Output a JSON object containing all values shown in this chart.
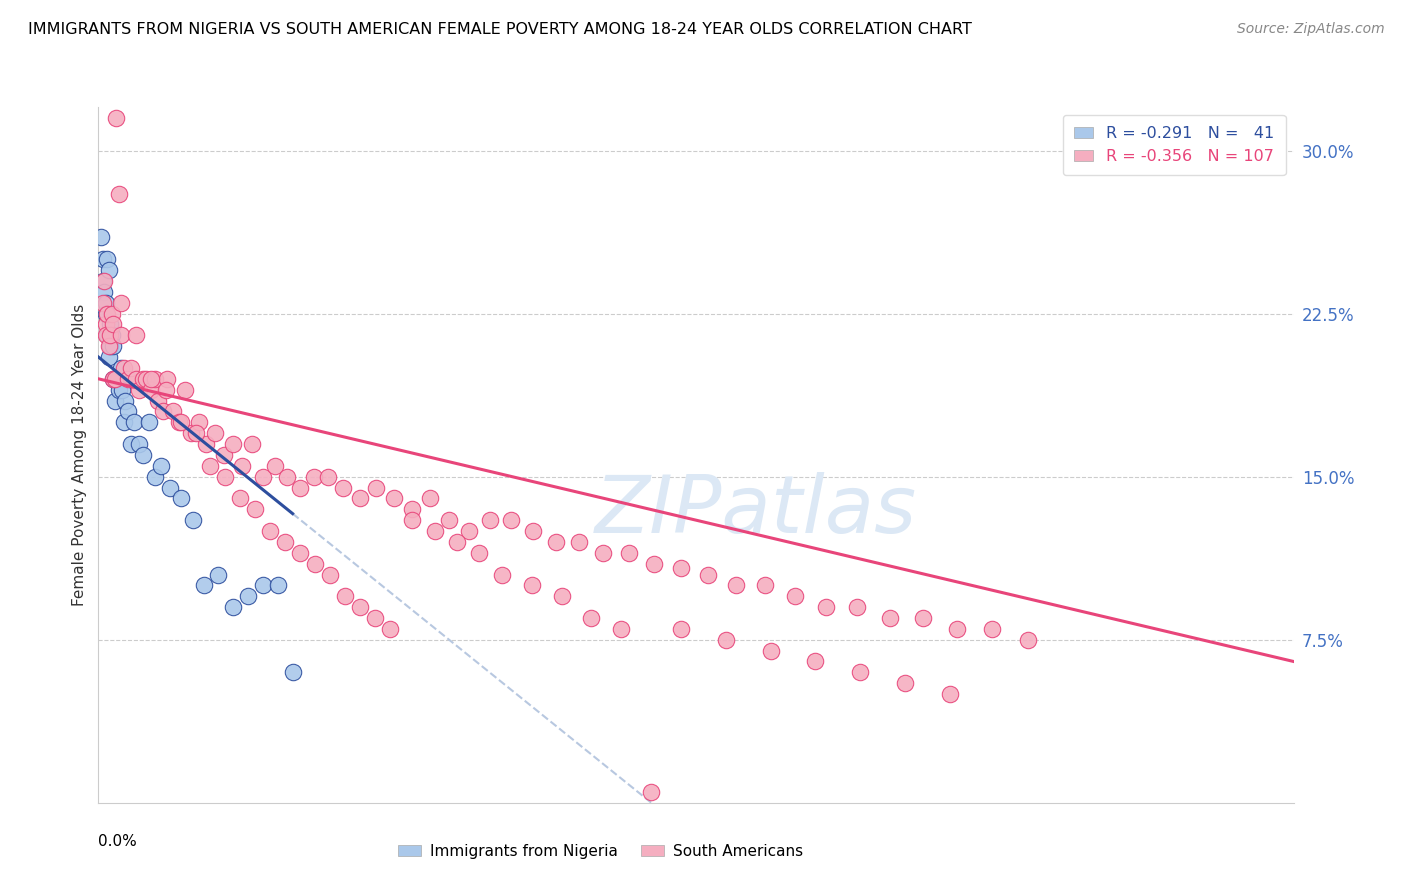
{
  "title": "IMMIGRANTS FROM NIGERIA VS SOUTH AMERICAN FEMALE POVERTY AMONG 18-24 YEAR OLDS CORRELATION CHART",
  "source": "Source: ZipAtlas.com",
  "ylabel": "Female Poverty Among 18-24 Year Olds",
  "right_yticks": [
    "30.0%",
    "22.5%",
    "15.0%",
    "7.5%"
  ],
  "right_ytick_vals": [
    0.3,
    0.225,
    0.15,
    0.075
  ],
  "legend_blue_label": "R = -0.291   N =   41",
  "legend_pink_label": "R = -0.356   N = 107",
  "scatter_blue_color": "#aac8ea",
  "scatter_pink_color": "#f5aec0",
  "line_blue_color": "#2d4e9e",
  "line_pink_color": "#e8457a",
  "line_dashed_color": "#b8c8e0",
  "watermark_text": "ZIPatlas",
  "watermark_color": "#dce8f5",
  "background_color": "#ffffff",
  "xmin": 0.0,
  "xmax": 0.8,
  "ymin": 0.0,
  "ymax": 0.32,
  "blue_line_x0": 0.0,
  "blue_line_y0": 0.205,
  "blue_line_x1": 0.13,
  "blue_line_y1": 0.133,
  "pink_line_x0": 0.0,
  "pink_line_y0": 0.195,
  "pink_line_x1": 0.8,
  "pink_line_y1": 0.065,
  "blue_x": [
    0.002,
    0.003,
    0.003,
    0.004,
    0.005,
    0.005,
    0.006,
    0.006,
    0.007,
    0.007,
    0.008,
    0.008,
    0.009,
    0.01,
    0.01,
    0.011,
    0.012,
    0.013,
    0.014,
    0.015,
    0.016,
    0.017,
    0.018,
    0.02,
    0.022,
    0.024,
    0.027,
    0.03,
    0.034,
    0.038,
    0.042,
    0.048,
    0.055,
    0.063,
    0.071,
    0.08,
    0.09,
    0.1,
    0.11,
    0.12,
    0.13
  ],
  "blue_y": [
    0.26,
    0.25,
    0.24,
    0.235,
    0.23,
    0.225,
    0.25,
    0.215,
    0.245,
    0.205,
    0.22,
    0.21,
    0.215,
    0.21,
    0.195,
    0.185,
    0.195,
    0.195,
    0.19,
    0.2,
    0.19,
    0.175,
    0.185,
    0.18,
    0.165,
    0.175,
    0.165,
    0.16,
    0.175,
    0.15,
    0.155,
    0.145,
    0.14,
    0.13,
    0.1,
    0.105,
    0.09,
    0.095,
    0.1,
    0.1,
    0.06
  ],
  "pink_x": [
    0.003,
    0.004,
    0.005,
    0.005,
    0.006,
    0.007,
    0.008,
    0.009,
    0.01,
    0.01,
    0.011,
    0.012,
    0.014,
    0.015,
    0.017,
    0.02,
    0.022,
    0.025,
    0.027,
    0.03,
    0.032,
    0.035,
    0.038,
    0.04,
    0.043,
    0.046,
    0.05,
    0.054,
    0.058,
    0.062,
    0.067,
    0.072,
    0.078,
    0.084,
    0.09,
    0.096,
    0.103,
    0.11,
    0.118,
    0.126,
    0.135,
    0.144,
    0.154,
    0.164,
    0.175,
    0.186,
    0.198,
    0.21,
    0.222,
    0.235,
    0.248,
    0.262,
    0.276,
    0.291,
    0.306,
    0.322,
    0.338,
    0.355,
    0.372,
    0.39,
    0.408,
    0.427,
    0.446,
    0.466,
    0.487,
    0.508,
    0.53,
    0.552,
    0.575,
    0.598,
    0.622,
    0.015,
    0.025,
    0.035,
    0.045,
    0.055,
    0.065,
    0.075,
    0.085,
    0.095,
    0.105,
    0.115,
    0.125,
    0.135,
    0.145,
    0.155,
    0.165,
    0.175,
    0.185,
    0.195,
    0.21,
    0.225,
    0.24,
    0.255,
    0.27,
    0.29,
    0.31,
    0.33,
    0.35,
    0.37,
    0.39,
    0.42,
    0.45,
    0.48,
    0.51,
    0.54,
    0.57
  ],
  "pink_y": [
    0.23,
    0.24,
    0.22,
    0.215,
    0.225,
    0.21,
    0.215,
    0.225,
    0.195,
    0.22,
    0.195,
    0.315,
    0.28,
    0.215,
    0.2,
    0.195,
    0.2,
    0.195,
    0.19,
    0.195,
    0.195,
    0.19,
    0.195,
    0.185,
    0.18,
    0.195,
    0.18,
    0.175,
    0.19,
    0.17,
    0.175,
    0.165,
    0.17,
    0.16,
    0.165,
    0.155,
    0.165,
    0.15,
    0.155,
    0.15,
    0.145,
    0.15,
    0.15,
    0.145,
    0.14,
    0.145,
    0.14,
    0.135,
    0.14,
    0.13,
    0.125,
    0.13,
    0.13,
    0.125,
    0.12,
    0.12,
    0.115,
    0.115,
    0.11,
    0.108,
    0.105,
    0.1,
    0.1,
    0.095,
    0.09,
    0.09,
    0.085,
    0.085,
    0.08,
    0.08,
    0.075,
    0.23,
    0.215,
    0.195,
    0.19,
    0.175,
    0.17,
    0.155,
    0.15,
    0.14,
    0.135,
    0.125,
    0.12,
    0.115,
    0.11,
    0.105,
    0.095,
    0.09,
    0.085,
    0.08,
    0.13,
    0.125,
    0.12,
    0.115,
    0.105,
    0.1,
    0.095,
    0.085,
    0.08,
    0.005,
    0.08,
    0.075,
    0.07,
    0.065,
    0.06,
    0.055,
    0.05
  ]
}
